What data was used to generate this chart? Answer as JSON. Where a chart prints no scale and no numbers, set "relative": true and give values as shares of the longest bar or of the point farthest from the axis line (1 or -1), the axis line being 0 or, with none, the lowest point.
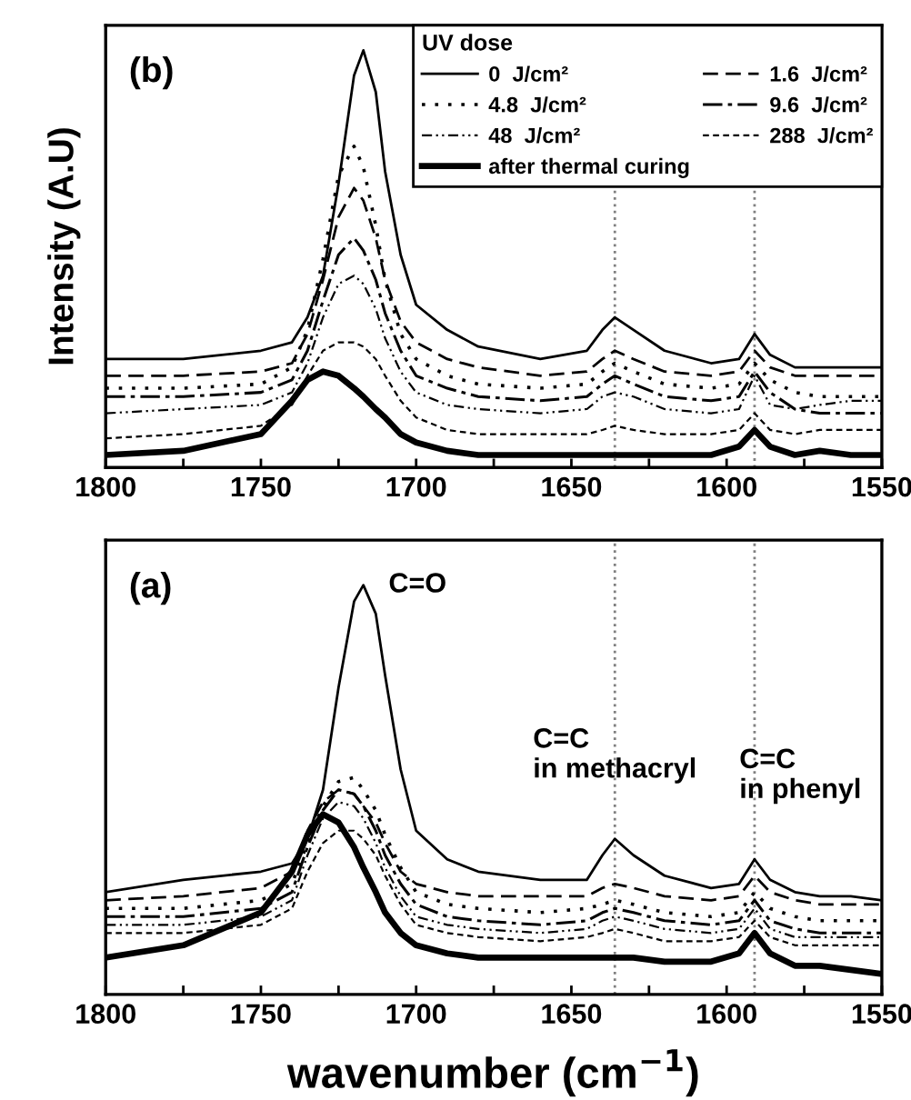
{
  "chart_data": [
    {
      "type": "line",
      "relative": true,
      "ylabel": "Intensity (A.U)",
      "legend_title": "UV dose",
      "legend": "top right",
      "tick_labels": "x",
      "grid": false,
      "annotations": [
        "(b)"
      ],
      "x": [
        1800,
        1775,
        1750,
        1740,
        1735,
        1730,
        1725,
        1720,
        1717,
        1713,
        1710,
        1705,
        1700,
        1690,
        1680,
        1660,
        1645,
        1640,
        1636,
        1630,
        1620,
        1605,
        1596,
        1591,
        1586,
        1578,
        1570,
        1560,
        1550
      ],
      "xlim": [
        1800,
        1550
      ],
      "xticks": [
        1800,
        {
          "value": 1775,
          "label": null
        },
        1750,
        {
          "value": 1725,
          "label": null
        },
        1700,
        {
          "value": 1675,
          "label": null
        },
        1650,
        {
          "value": 1625,
          "label": null
        },
        1600,
        {
          "value": 1575,
          "label": null
        },
        1550
      ],
      "ref_lines": [
        {
          "axis": "x",
          "value": 1636,
          "color": "#808080",
          "line_style": "dotted"
        },
        {
          "axis": "x",
          "value": 1591,
          "color": "#808080",
          "line_style": "dotted"
        }
      ],
      "series": [
        {
          "name": "0  J/cm²",
          "color": "#000000",
          "line_style": "solid",
          "values": [
            0.26,
            0.26,
            0.28,
            0.3,
            0.36,
            0.46,
            0.68,
            0.94,
            1.0,
            0.9,
            0.71,
            0.51,
            0.39,
            0.33,
            0.29,
            0.26,
            0.28,
            0.33,
            0.36,
            0.33,
            0.28,
            0.25,
            0.26,
            0.32,
            0.27,
            0.24,
            0.24,
            0.24,
            0.24
          ]
        },
        {
          "name": "1.6  J/cm²",
          "color": "#000000",
          "line_style": "dashed",
          "values": [
            0.22,
            0.22,
            0.23,
            0.25,
            0.32,
            0.45,
            0.6,
            0.67,
            0.64,
            0.55,
            0.45,
            0.35,
            0.3,
            0.26,
            0.24,
            0.22,
            0.23,
            0.26,
            0.28,
            0.26,
            0.23,
            0.22,
            0.23,
            0.28,
            0.24,
            0.22,
            0.22,
            0.22,
            0.22
          ]
        },
        {
          "name": "4.8  J/cm²",
          "color": "#000000",
          "line_style": "dotted",
          "values": [
            0.19,
            0.19,
            0.2,
            0.24,
            0.33,
            0.5,
            0.7,
            0.77,
            0.72,
            0.58,
            0.45,
            0.32,
            0.26,
            0.22,
            0.2,
            0.19,
            0.2,
            0.23,
            0.25,
            0.23,
            0.2,
            0.19,
            0.2,
            0.25,
            0.21,
            0.18,
            0.17,
            0.17,
            0.17
          ]
        },
        {
          "name": "9.6  J/cm²",
          "color": "#000000",
          "line_style": "dashdot",
          "values": [
            0.17,
            0.17,
            0.18,
            0.21,
            0.28,
            0.4,
            0.51,
            0.55,
            0.52,
            0.45,
            0.37,
            0.28,
            0.22,
            0.19,
            0.17,
            0.16,
            0.17,
            0.2,
            0.22,
            0.2,
            0.17,
            0.16,
            0.17,
            0.23,
            0.18,
            0.14,
            0.13,
            0.13,
            0.13
          ]
        },
        {
          "name": "48  J/cm²",
          "color": "#000000",
          "line_style": "dashdotdot",
          "values": [
            0.13,
            0.14,
            0.15,
            0.18,
            0.25,
            0.36,
            0.44,
            0.46,
            0.44,
            0.38,
            0.31,
            0.23,
            0.18,
            0.15,
            0.14,
            0.13,
            0.14,
            0.17,
            0.18,
            0.17,
            0.14,
            0.13,
            0.14,
            0.22,
            0.15,
            0.14,
            0.15,
            0.16,
            0.16
          ]
        },
        {
          "name": "288  J/cm²",
          "color": "#000000",
          "line_style": "shortdash",
          "values": [
            0.07,
            0.08,
            0.1,
            0.15,
            0.22,
            0.28,
            0.3,
            0.3,
            0.29,
            0.26,
            0.22,
            0.16,
            0.12,
            0.09,
            0.08,
            0.08,
            0.08,
            0.09,
            0.1,
            0.09,
            0.08,
            0.08,
            0.09,
            0.13,
            0.09,
            0.08,
            0.09,
            0.09,
            0.09
          ]
        },
        {
          "name": "after thermal curing",
          "color": "#000000",
          "line_style": "solid",
          "values": [
            0.03,
            0.04,
            0.08,
            0.16,
            0.21,
            0.23,
            0.22,
            0.19,
            0.17,
            0.14,
            0.12,
            0.08,
            0.06,
            0.04,
            0.03,
            0.03,
            0.03,
            0.03,
            0.03,
            0.03,
            0.03,
            0.03,
            0.05,
            0.09,
            0.05,
            0.03,
            0.04,
            0.03,
            0.03
          ]
        }
      ]
    },
    {
      "type": "line",
      "relative": true,
      "xlabel": "wavenumber (cm$^{−1}$)",
      "tick_labels": "x",
      "grid": false,
      "legend": false,
      "annotations": [
        "(a)",
        {
          "text": "C=O",
          "x": 1717,
          "y": 1.0
        },
        {
          "text": "C=C\nin methacryl",
          "x": 1636,
          "y": 0.38
        },
        {
          "text": "C=C\nin phenyl",
          "x": 1591,
          "y": 0.33
        }
      ],
      "x": [
        1800,
        1775,
        1750,
        1740,
        1735,
        1730,
        1725,
        1720,
        1717,
        1713,
        1710,
        1705,
        1700,
        1690,
        1680,
        1660,
        1645,
        1640,
        1636,
        1630,
        1620,
        1605,
        1596,
        1591,
        1586,
        1578,
        1570,
        1560,
        1550
      ],
      "xlim": [
        1800,
        1550
      ],
      "xticks": [
        1800,
        {
          "value": 1775,
          "label": null
        },
        1750,
        {
          "value": 1725,
          "label": null
        },
        1700,
        {
          "value": 1675,
          "label": null
        },
        1650,
        {
          "value": 1625,
          "label": null
        },
        1600,
        {
          "value": 1575,
          "label": null
        },
        1550
      ],
      "ref_lines": [
        {
          "axis": "x",
          "value": 1636,
          "color": "#808080",
          "line_style": "dotted"
        },
        {
          "axis": "x",
          "value": 1591,
          "color": "#808080",
          "line_style": "dotted"
        }
      ],
      "series": [
        {
          "color": "#000000",
          "line_style": "solid",
          "values": [
            0.25,
            0.28,
            0.3,
            0.32,
            0.38,
            0.5,
            0.75,
            0.96,
            1.0,
            0.93,
            0.78,
            0.55,
            0.4,
            0.33,
            0.3,
            0.28,
            0.28,
            0.34,
            0.38,
            0.34,
            0.29,
            0.26,
            0.27,
            0.33,
            0.28,
            0.25,
            0.24,
            0.24,
            0.23
          ]
        },
        {
          "color": "#000000",
          "line_style": "dashed",
          "values": [
            0.23,
            0.24,
            0.26,
            0.3,
            0.4,
            0.47,
            0.5,
            0.49,
            0.46,
            0.42,
            0.37,
            0.3,
            0.27,
            0.25,
            0.24,
            0.24,
            0.24,
            0.26,
            0.27,
            0.26,
            0.24,
            0.23,
            0.24,
            0.29,
            0.25,
            0.23,
            0.22,
            0.22,
            0.22
          ]
        },
        {
          "color": "#000000",
          "line_style": "dotted",
          "values": [
            0.21,
            0.21,
            0.23,
            0.27,
            0.37,
            0.46,
            0.52,
            0.53,
            0.5,
            0.45,
            0.39,
            0.31,
            0.25,
            0.22,
            0.21,
            0.2,
            0.21,
            0.22,
            0.23,
            0.22,
            0.2,
            0.19,
            0.2,
            0.25,
            0.21,
            0.19,
            0.18,
            0.18,
            0.18
          ]
        },
        {
          "color": "#000000",
          "line_style": "dashdot",
          "values": [
            0.19,
            0.19,
            0.21,
            0.25,
            0.36,
            0.45,
            0.5,
            0.49,
            0.46,
            0.4,
            0.34,
            0.27,
            0.22,
            0.19,
            0.18,
            0.17,
            0.18,
            0.2,
            0.21,
            0.2,
            0.18,
            0.17,
            0.18,
            0.23,
            0.18,
            0.16,
            0.15,
            0.15,
            0.15
          ]
        },
        {
          "color": "#000000",
          "line_style": "dashdotdot",
          "values": [
            0.17,
            0.17,
            0.19,
            0.23,
            0.34,
            0.43,
            0.47,
            0.46,
            0.43,
            0.37,
            0.31,
            0.24,
            0.19,
            0.17,
            0.16,
            0.15,
            0.16,
            0.18,
            0.19,
            0.18,
            0.16,
            0.15,
            0.16,
            0.21,
            0.16,
            0.14,
            0.14,
            0.14,
            0.14
          ]
        },
        {
          "color": "#000000",
          "line_style": "shortdash",
          "values": [
            0.15,
            0.15,
            0.17,
            0.21,
            0.3,
            0.37,
            0.4,
            0.4,
            0.38,
            0.34,
            0.29,
            0.22,
            0.17,
            0.15,
            0.14,
            0.13,
            0.14,
            0.15,
            0.16,
            0.15,
            0.13,
            0.13,
            0.14,
            0.18,
            0.14,
            0.12,
            0.12,
            0.12,
            0.12
          ]
        },
        {
          "color": "#000000",
          "line_style": "solid",
          "values": [
            0.09,
            0.12,
            0.2,
            0.3,
            0.39,
            0.44,
            0.42,
            0.36,
            0.31,
            0.25,
            0.2,
            0.15,
            0.12,
            0.1,
            0.09,
            0.09,
            0.09,
            0.09,
            0.09,
            0.09,
            0.08,
            0.08,
            0.1,
            0.15,
            0.1,
            0.07,
            0.07,
            0.06,
            0.05
          ]
        }
      ]
    }
  ]
}
